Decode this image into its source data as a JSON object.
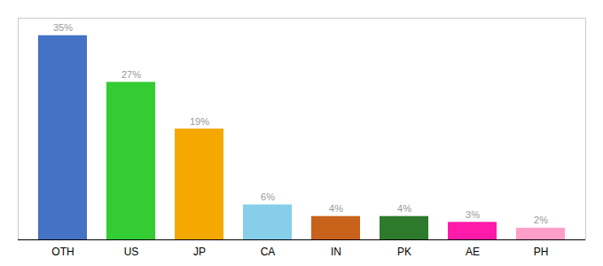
{
  "chart_data": {
    "type": "bar",
    "categories": [
      "OTH",
      "US",
      "JP",
      "CA",
      "IN",
      "PK",
      "AE",
      "PH"
    ],
    "values": [
      35,
      27,
      19,
      6,
      4,
      4,
      3,
      2
    ],
    "value_labels": [
      "35%",
      "27%",
      "19%",
      "6%",
      "4%",
      "4%",
      "3%",
      "2%"
    ],
    "colors": [
      "#4472c4",
      "#33cc33",
      "#f5a800",
      "#87ceeb",
      "#c8621a",
      "#2d7a2d",
      "#ff1aaa",
      "#ff9ec8"
    ],
    "ylim": [
      0,
      38
    ],
    "data_labels": true,
    "tick_labels": "x",
    "grid": false
  }
}
